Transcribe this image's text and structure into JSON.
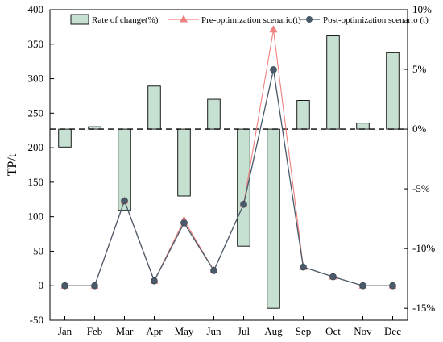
{
  "chart_data": {
    "type": "bar+line",
    "title": "",
    "categories": [
      "Jan",
      "Feb",
      "Mar",
      "Apr",
      "May",
      "Jun",
      "Jul",
      "Aug",
      "Sep",
      "Oct",
      "Nov",
      "Dec"
    ],
    "ylabel_left": "TP/t",
    "ylim_left": [
      -50,
      400
    ],
    "yticks_left": [
      -50,
      0,
      50,
      100,
      150,
      200,
      250,
      300,
      350,
      400
    ],
    "ylim_right": [
      -16,
      10
    ],
    "yticks_right": [
      10,
      5,
      0,
      -5,
      -10,
      -15
    ],
    "yticks_right_labels": [
      "10%",
      "5%",
      "0%",
      "-5%",
      "-10%",
      "-15%"
    ],
    "zero_line_right": 0,
    "legend_position": "top",
    "series": [
      {
        "name": "Rate of change(%)",
        "kind": "bar",
        "axis": "right",
        "color": "#c6e0d2",
        "values": [
          -1.5,
          0.2,
          -6.8,
          3.6,
          -5.6,
          2.5,
          -9.8,
          -15.0,
          2.4,
          7.8,
          0.5,
          6.4
        ]
      },
      {
        "name": "Pre-optimization scenario(t)",
        "kind": "line",
        "marker": "triangle",
        "axis": "left",
        "color": "#f08080",
        "values": [
          0,
          0,
          123,
          7,
          95,
          22,
          118,
          371,
          27,
          13,
          0,
          0
        ]
      },
      {
        "name": "Post-optimization scenario (t)",
        "kind": "line",
        "marker": "circle",
        "axis": "left",
        "color": "#4a5a6a",
        "values": [
          0,
          0,
          123,
          7,
          91,
          22,
          118,
          313,
          27,
          13,
          0,
          0
        ]
      }
    ]
  }
}
